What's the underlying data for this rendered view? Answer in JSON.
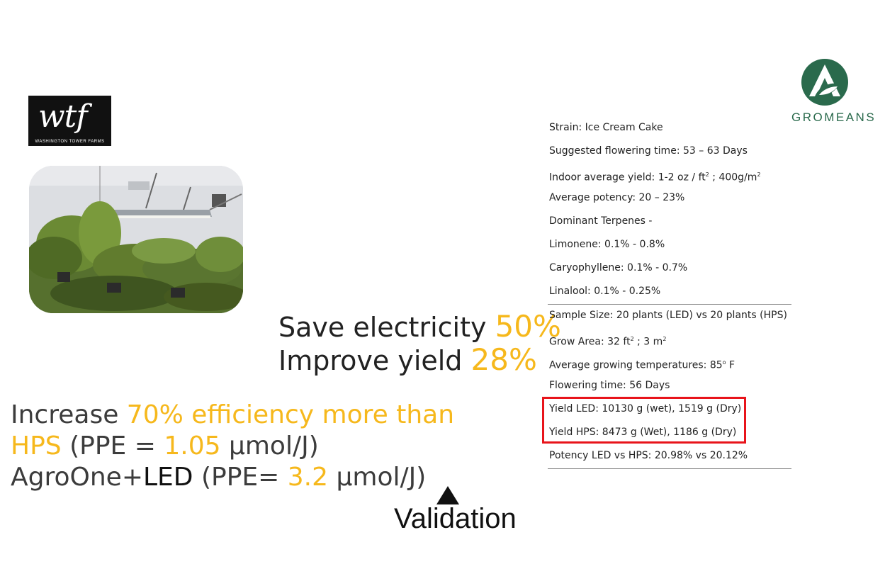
{
  "wtf_logo": {
    "monogram": "wtf",
    "caption": "WASHINGTON TOWER FARMS"
  },
  "brand": {
    "name": "GROMEANS",
    "gold": "#f6b81c",
    "green": "#2a6a4c",
    "highlight": "#e8141b"
  },
  "headline": {
    "line1_text": "Save electricity ",
    "line1_value": "50%",
    "line2_text": "Improve yield ",
    "line2_value": "28%"
  },
  "efficiency": {
    "increase": "Increase ",
    "increase_value": "70% efficiency more than",
    "hps": "HPS",
    "hps_ppe_open": " (PPE = ",
    "hps_ppe_value": "1.05",
    "hps_ppe_unit": " μmol/J)",
    "agro": "AgroOne+",
    "led": "LED",
    "agro_ppe_open": " (PPE= ",
    "agro_ppe_value": "3.2",
    "agro_ppe_unit": " μmol/J)"
  },
  "validation_label": "Validation",
  "specs": {
    "strain": "Strain: Ice Cream Cake",
    "flowering_suggested": "Suggested flowering time: 53 – 63 Days",
    "yield_pre": "Indoor average yield: 1-2 oz / ft",
    "yield_sup1": "2",
    "yield_mid": " ; 400g/m",
    "yield_sup2": "2",
    "potency": "Average potency: 20 – 23%",
    "terpenes": "Dominant Terpenes -",
    "limonene": "Limonene: 0.1% - 0.8%",
    "caryophyllene": "Caryophyllene: 0.1% - 0.7%",
    "linalool": "Linalool: 0.1% - 0.25%",
    "sample": "Sample Size: 20 plants (LED) vs 20 plants (HPS)",
    "area_pre": "Grow Area: 32 ft",
    "area_sup1": "2",
    "area_mid": " ; 3 m",
    "area_sup2": "2",
    "temp_pre": "Average growing temperatures: 85",
    "temp_sup": "o",
    "temp_unit": " F",
    "flowering": "Flowering time: 56 Days",
    "yield_led": "Yield LED: 10130 g (wet), 1519 g (Dry)",
    "yield_hps": "Yield HPS: 8473 g (Wet), 1186 g (Dry)",
    "potency_cmp": "Potency LED vs HPS: 20.98% vs 20.12%"
  }
}
